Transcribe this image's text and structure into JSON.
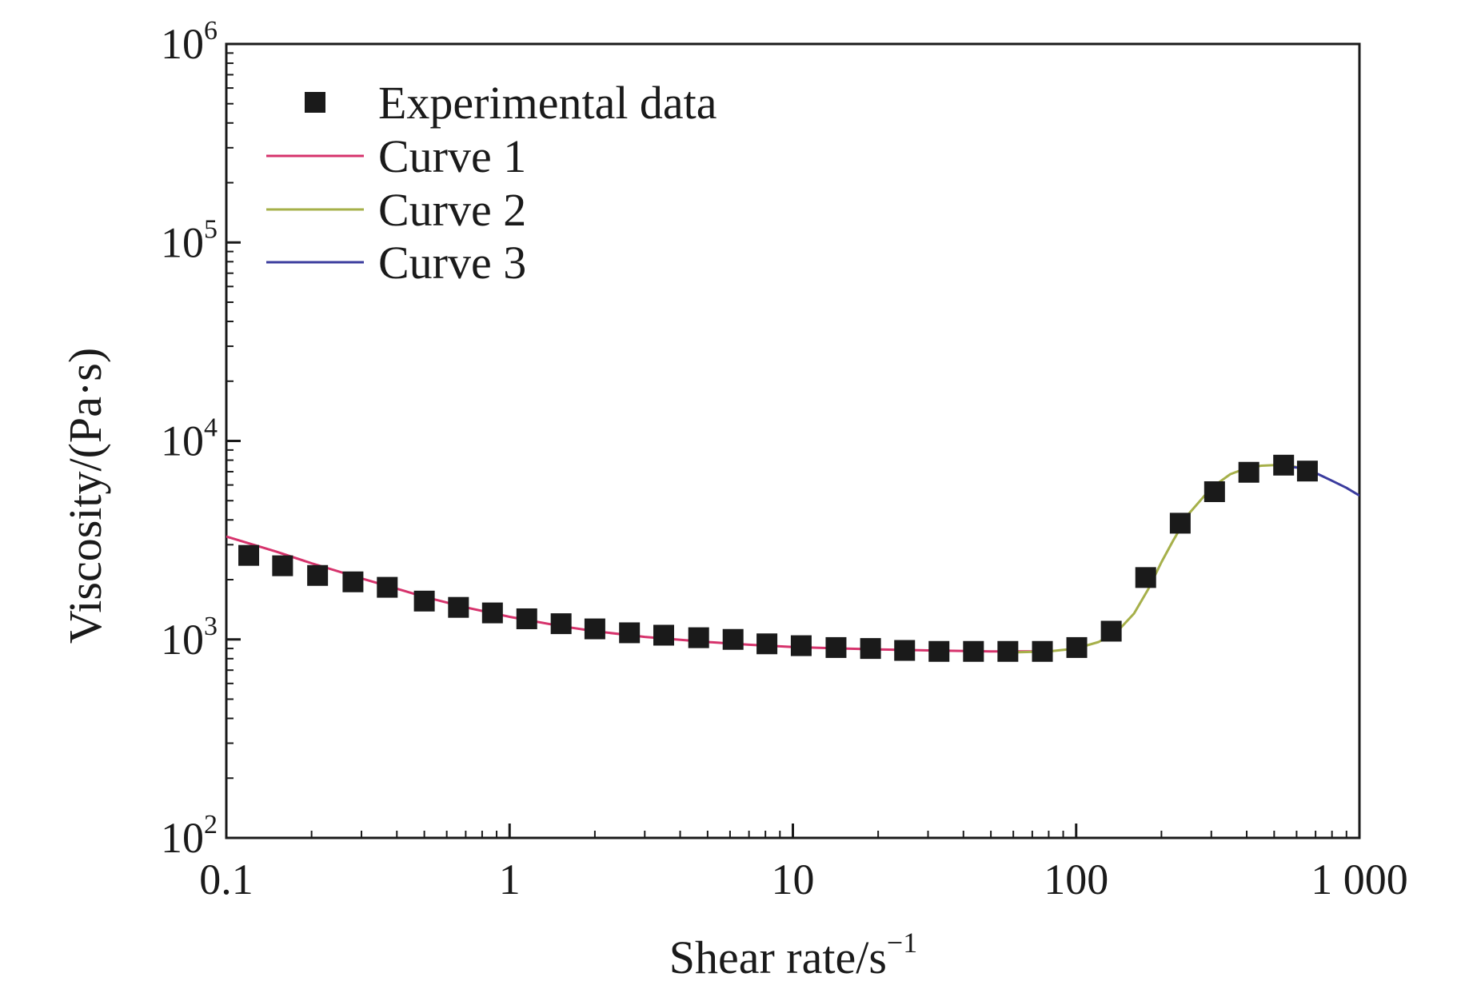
{
  "chart_data": {
    "type": "scatter",
    "x_scale": "log",
    "y_scale": "log",
    "xlim": [
      0.1,
      1000
    ],
    "ylim": [
      100,
      1000000
    ],
    "x_ticks": [
      {
        "value": 0.1,
        "label": "0.1"
      },
      {
        "value": 1,
        "label": "1"
      },
      {
        "value": 10,
        "label": "10"
      },
      {
        "value": 100,
        "label": "100"
      },
      {
        "value": 1000,
        "label": "1 000"
      }
    ],
    "y_ticks": [
      {
        "value": 100,
        "base": "10",
        "exp": "2"
      },
      {
        "value": 1000,
        "base": "10",
        "exp": "3"
      },
      {
        "value": 10000,
        "base": "10",
        "exp": "4"
      },
      {
        "value": 100000,
        "base": "10",
        "exp": "5"
      },
      {
        "value": 1000000,
        "base": "10",
        "exp": "6"
      }
    ],
    "xlabel": {
      "text": "Shear rate/s",
      "sup": "−1"
    },
    "ylabel": "Viscosity/(Pa·s)",
    "grid": false,
    "legend_position": "top-left",
    "series": [
      {
        "name": "Experimental data",
        "kind": "markers",
        "color": "#1a1a1a",
        "x": [
          0.12,
          0.158,
          0.21,
          0.28,
          0.37,
          0.5,
          0.66,
          0.87,
          1.15,
          1.52,
          2.0,
          2.65,
          3.5,
          4.65,
          6.15,
          8.1,
          10.7,
          14.2,
          18.8,
          24.8,
          32.8,
          43.4,
          57.4,
          76.0,
          100.5,
          133,
          176,
          233,
          308,
          407,
          540,
          655
        ],
        "y": [
          2650,
          2350,
          2100,
          1950,
          1830,
          1560,
          1450,
          1360,
          1270,
          1200,
          1130,
          1080,
          1050,
          1020,
          1000,
          950,
          930,
          910,
          900,
          880,
          870,
          870,
          870,
          870,
          910,
          1100,
          2050,
          3850,
          5550,
          6950,
          7550,
          7050
        ]
      },
      {
        "name": "Curve 1",
        "kind": "line",
        "color": "#d6336c",
        "x": [
          0.1,
          0.15,
          0.2,
          0.3,
          0.5,
          0.7,
          1,
          1.5,
          2,
          3,
          5,
          7,
          10,
          15,
          20,
          30,
          50,
          70,
          80
        ],
        "y": [
          3300,
          2770,
          2420,
          2030,
          1640,
          1450,
          1300,
          1170,
          1100,
          1030,
          970,
          940,
          915,
          900,
          890,
          880,
          870,
          870,
          870
        ]
      },
      {
        "name": "Curve 2",
        "kind": "line",
        "color": "#a6b04a",
        "x": [
          60,
          80,
          100,
          120,
          140,
          160,
          180,
          200,
          220,
          250,
          300,
          350,
          400,
          450,
          500,
          550,
          600
        ],
        "y": [
          860,
          870,
          900,
          970,
          1100,
          1350,
          1800,
          2450,
          3150,
          4300,
          5800,
          6800,
          7300,
          7500,
          7550,
          7500,
          7400
        ]
      },
      {
        "name": "Curve 3",
        "kind": "line",
        "color": "#3b3c9e",
        "x": [
          550,
          600,
          650,
          700,
          800,
          900,
          1000
        ],
        "y": [
          7450,
          7350,
          7150,
          6900,
          6300,
          5800,
          5300
        ]
      }
    ]
  }
}
